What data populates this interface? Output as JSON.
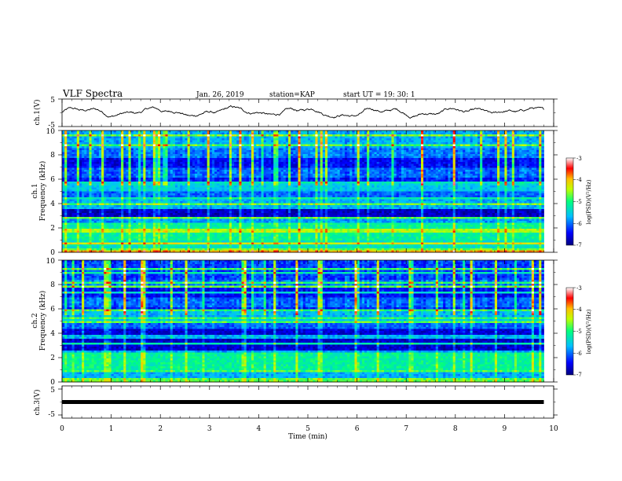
{
  "header": {
    "title": "VLF Spectra",
    "date": "Jan. 26, 2019",
    "station": "station=KAP",
    "start": "start  UT =   19: 30: 1"
  },
  "chart_data": [
    {
      "type": "line",
      "name": "ch1-voltage",
      "ylabel": "ch.1(V)",
      "xlim": [
        0,
        10
      ],
      "ylim": [
        -5,
        5
      ],
      "yticks": [
        "5",
        "-5"
      ],
      "description_values": {
        "x_end": 9.8,
        "mean": 0.2,
        "amplitude": 1.6
      }
    },
    {
      "type": "heatmap",
      "name": "ch1-spectrogram",
      "ylabel_top": "ch.1",
      "ylabel": "Frequency (kHz)",
      "xlim": [
        0,
        10
      ],
      "ylim": [
        0,
        10
      ],
      "yticks": [
        "0",
        "2",
        "4",
        "6",
        "8",
        "10"
      ],
      "x_end": 9.8,
      "colorbar": {
        "label": "log(PSD)(V²/Hz)",
        "range": [
          -7,
          -3
        ],
        "ticks": [
          "-3",
          "-4",
          "-5",
          "-6",
          "-7"
        ],
        "colors": [
          "#00007f",
          "#0000ff",
          "#00bfff",
          "#00ff7f",
          "#bfff00",
          "#ffbf00",
          "#ff0000",
          "#ffffff"
        ]
      }
    },
    {
      "type": "heatmap",
      "name": "ch2-spectrogram",
      "ylabel_top": "ch.2",
      "ylabel": "Frequency (kHz)",
      "xlim": [
        0,
        10
      ],
      "ylim": [
        0,
        10
      ],
      "yticks": [
        "0",
        "2",
        "4",
        "6",
        "8",
        "10"
      ],
      "x_end": 9.8,
      "colorbar": {
        "label": "log(PSD)(V²/Hz)",
        "range": [
          -7,
          -3
        ],
        "ticks": [
          "-3",
          "-4",
          "-5",
          "-6",
          "-7"
        ],
        "colors": [
          "#00007f",
          "#0000ff",
          "#00bfff",
          "#00ff7f",
          "#bfff00",
          "#ffbf00",
          "#ff0000",
          "#ffffff"
        ]
      }
    },
    {
      "type": "line",
      "name": "ch3-voltage",
      "ylabel": "ch.3(V)",
      "xlim": [
        0,
        10
      ],
      "ylim": [
        -5,
        5
      ],
      "yticks": [
        "5",
        "-5"
      ],
      "x": [
        0,
        9.8
      ],
      "y": [
        0,
        0
      ]
    }
  ],
  "xaxis": {
    "label": "Time  (min)",
    "ticks": [
      "0",
      "1",
      "2",
      "3",
      "4",
      "5",
      "6",
      "7",
      "8",
      "9",
      "10"
    ]
  }
}
